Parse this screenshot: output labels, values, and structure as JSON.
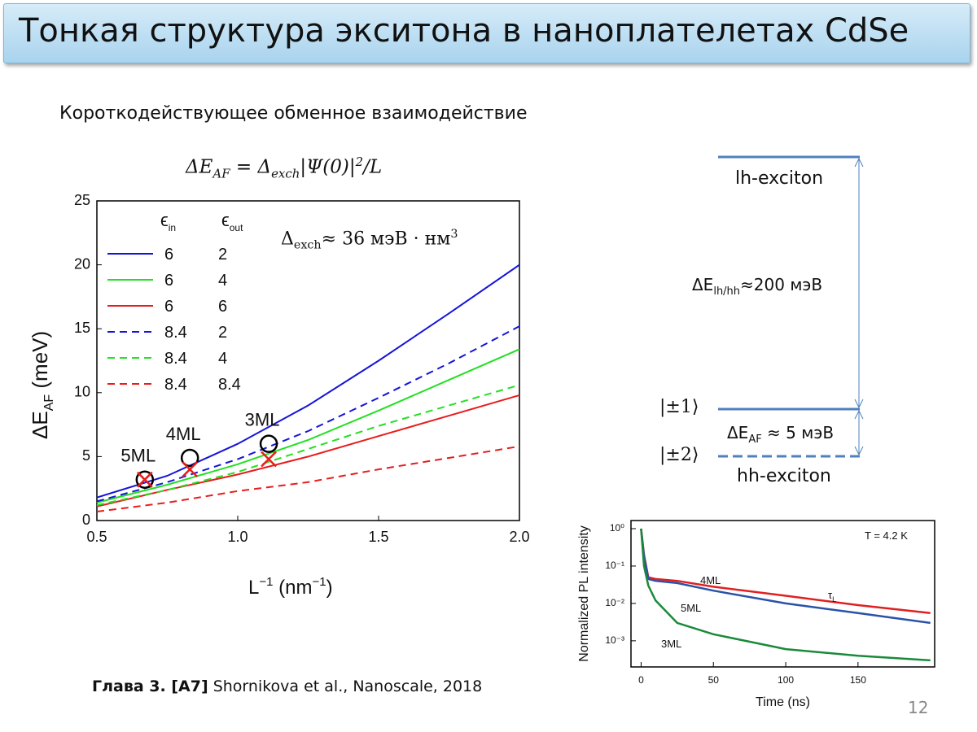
{
  "header": {
    "title": "Тонкая структура экситона в наноплателетах CdSe"
  },
  "subtitle": "Короткодействующее обменное взаимодействие",
  "formula": [
    "ΔE",
    "AF",
    " = Δ",
    "exch",
    "|Ψ(0)|",
    "2",
    "/L"
  ],
  "chart_data": [
    {
      "type": "line",
      "x": [
        0.5,
        0.75,
        1.0,
        1.25,
        1.5,
        1.75,
        2.0
      ],
      "xlim": [
        0.5,
        2.0
      ],
      "xticks": [
        {
          "value": 0.5,
          "label": "0.5"
        },
        {
          "value": 1.0,
          "label": "1.0"
        },
        {
          "value": 1.5,
          "label": "1.5"
        },
        {
          "value": 2.0,
          "label": "2.0"
        }
      ],
      "ylim": [
        0,
        25
      ],
      "yticks": [
        0,
        5,
        10,
        15,
        20,
        25
      ],
      "xlabel": [
        "L",
        "−1",
        " (nm",
        "−1",
        ")"
      ],
      "ylabel": [
        "ΔE",
        "AF",
        " (meV)"
      ],
      "legend_header": [
        [
          "ϵ",
          "in"
        ],
        [
          "ϵ",
          "out"
        ]
      ],
      "annotation": [
        "Δ",
        "exch",
        "≈ 36 мэВ · нм",
        "3"
      ],
      "series": [
        {
          "eps_in": "6",
          "eps_out": "2",
          "color": "#1515d6",
          "dash": false,
          "values": [
            1.8,
            3.5,
            6.0,
            9.0,
            12.5,
            16.2,
            20.0
          ]
        },
        {
          "eps_in": "6",
          "eps_out": "4",
          "color": "#22e022",
          "dash": false,
          "values": [
            1.4,
            2.8,
            4.4,
            6.3,
            8.6,
            11.0,
            13.4
          ]
        },
        {
          "eps_in": "6",
          "eps_out": "6",
          "color": "#e81c1c",
          "dash": false,
          "values": [
            1.1,
            2.4,
            3.6,
            5.0,
            6.6,
            8.2,
            9.8
          ]
        },
        {
          "eps_in": "8.4",
          "eps_out": "2",
          "color": "#1515d6",
          "dash": true,
          "values": [
            1.5,
            3.0,
            4.8,
            7.0,
            9.6,
            12.3,
            15.2
          ]
        },
        {
          "eps_in": "8.4",
          "eps_out": "4",
          "color": "#22e022",
          "dash": true,
          "values": [
            1.2,
            2.4,
            3.8,
            5.6,
            7.4,
            9.0,
            10.6
          ]
        },
        {
          "eps_in": "8.4",
          "eps_out": "8.4",
          "color": "#e81c1c",
          "dash": true,
          "values": [
            0.7,
            1.4,
            2.3,
            3.0,
            4.0,
            4.9,
            5.8
          ]
        }
      ],
      "markers": {
        "labels": [
          "5ML",
          "4ML",
          "3ML"
        ],
        "x": [
          0.67,
          0.83,
          1.11
        ],
        "circle": [
          3.2,
          4.9,
          6.0
        ],
        "cross": [
          3.2,
          4.0,
          4.8
        ]
      }
    },
    {
      "type": "line",
      "log_y": true,
      "x": [
        0,
        2,
        5,
        10,
        25,
        50,
        100,
        150,
        200
      ],
      "xlim": [
        -7,
        203
      ],
      "xticks": [
        0,
        50,
        100,
        150
      ],
      "ylim": [
        0.0002,
        1.65
      ],
      "yticks": [
        {
          "value": 1,
          "label": "10⁰"
        },
        {
          "value": 0.1,
          "label": "10⁻¹"
        },
        {
          "value": 0.01,
          "label": "10⁻²"
        },
        {
          "value": 0.001,
          "label": "10⁻³"
        }
      ],
      "xlabel": "Time (ns)",
      "ylabel": "Normalized PL intensity",
      "annotation": "T = 4.2 K",
      "tau": [
        "τ",
        "L"
      ],
      "series": [
        {
          "name": "4ML",
          "color": "#e02020",
          "values": [
            1,
            0.2,
            0.05,
            0.045,
            0.04,
            0.028,
            0.016,
            0.009,
            0.0055
          ]
        },
        {
          "name": "5ML",
          "color": "#2a52a8",
          "values": [
            1,
            0.18,
            0.045,
            0.04,
            0.035,
            0.022,
            0.01,
            0.0055,
            0.003
          ]
        },
        {
          "name": "3ML",
          "color": "#1a8a3a",
          "values": [
            1,
            0.1,
            0.03,
            0.012,
            0.003,
            0.0015,
            0.0006,
            0.0004,
            0.0003
          ]
        }
      ]
    }
  ],
  "diagram": {
    "lh_label": "lh-exciton",
    "gap_lh_hh": [
      "ΔE",
      "lh/hh",
      "≈200 мэВ"
    ],
    "state_1": "|±1⟩",
    "gap_af": [
      "ΔE",
      "AF",
      " ≈ 5 мэВ"
    ],
    "state_2": "|±2⟩",
    "hh_label": "hh-exciton"
  },
  "footer": {
    "chapter": "Глава 3. [A7]",
    "citation": "Shornikova et al., Nanoscale, 2018"
  },
  "page_number": "12"
}
